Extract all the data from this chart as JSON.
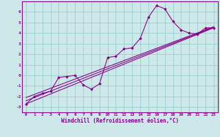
{
  "bg_color": "#cce8e8",
  "grid_color": "#99cccc",
  "line_color": "#880088",
  "marker_color": "#880088",
  "xlabel": "Windchill (Refroidissement éolien,°C)",
  "xlim": [
    -0.5,
    23.5
  ],
  "ylim": [
    -3.5,
    7.0
  ],
  "xticks": [
    0,
    1,
    2,
    3,
    4,
    5,
    6,
    7,
    8,
    9,
    10,
    11,
    12,
    13,
    14,
    15,
    16,
    17,
    18,
    19,
    20,
    21,
    22,
    23
  ],
  "yticks": [
    -3,
    -2,
    -1,
    0,
    1,
    2,
    3,
    4,
    5,
    6
  ],
  "series1_x": [
    0,
    1,
    2,
    3,
    4,
    5,
    6,
    7,
    8,
    9,
    10,
    11,
    12,
    13,
    14,
    15,
    16,
    17,
    18,
    19,
    20,
    21,
    22,
    23
  ],
  "series1_y": [
    -2.7,
    -2.0,
    -1.7,
    -1.5,
    -0.2,
    -0.1,
    0.0,
    -0.9,
    -1.3,
    -0.8,
    1.7,
    1.8,
    2.5,
    2.6,
    3.5,
    5.5,
    6.6,
    6.3,
    5.1,
    4.3,
    4.0,
    3.9,
    4.5,
    4.5
  ],
  "line2_x": [
    0,
    23
  ],
  "line2_y": [
    -2.7,
    4.5
  ],
  "line3_x": [
    0,
    23
  ],
  "line3_y": [
    -2.1,
    4.6
  ],
  "line4_x": [
    0,
    23
  ],
  "line4_y": [
    -2.4,
    4.55
  ]
}
